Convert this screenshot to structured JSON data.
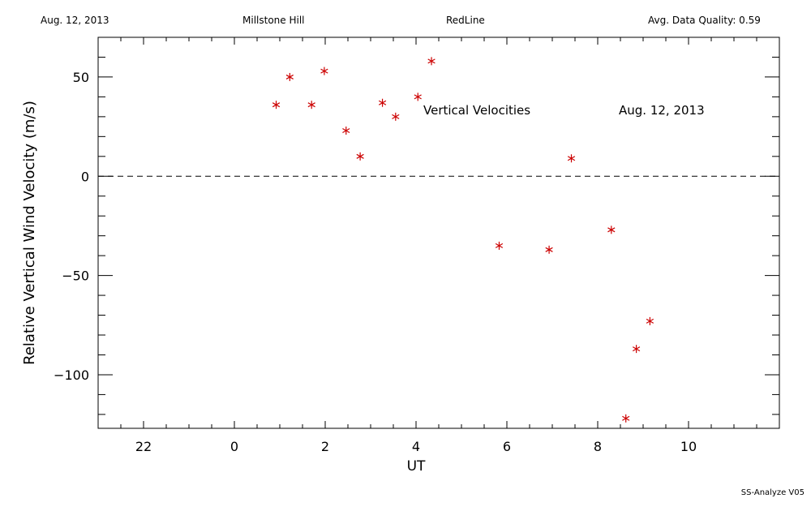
{
  "header": {
    "date": "Aug. 12, 2013",
    "site": "Millstone Hill",
    "line": "RedLine",
    "quality": "Avg. Data Quality: 0.59"
  },
  "footer": "SS-Analyze V05",
  "colors": {
    "points": "#cc0000",
    "axes": "#000000",
    "zero_line": "#000000"
  },
  "chart_data": {
    "type": "scatter",
    "title": "",
    "annotations": [
      "Vertical Velocities",
      "Aug. 12, 2013"
    ],
    "xlabel": "UT",
    "ylabel": "Relative Vertical Wind Velocity (m/s)",
    "x_tick_labels": [
      "22",
      "0",
      "2",
      "4",
      "6",
      "8",
      "10"
    ],
    "y_tick_labels": [
      "50",
      "0",
      "−50",
      "−100"
    ],
    "xlim": [
      -3.0,
      12.0
    ],
    "ylim": [
      -127,
      70
    ],
    "grid": false,
    "zero_line": true,
    "legend": "none",
    "marker": "asterisk",
    "series": [
      {
        "x": [
          0.92,
          1.22,
          1.7,
          1.98,
          2.46,
          2.77,
          3.26,
          3.55,
          4.04,
          4.34,
          5.83,
          6.93,
          7.42,
          8.3,
          8.62,
          8.85,
          9.15
        ],
        "y": [
          36,
          50,
          36,
          53,
          23,
          10,
          37,
          30,
          40,
          58,
          -35,
          -37,
          9,
          -27,
          -122,
          -87,
          -73
        ]
      }
    ]
  }
}
